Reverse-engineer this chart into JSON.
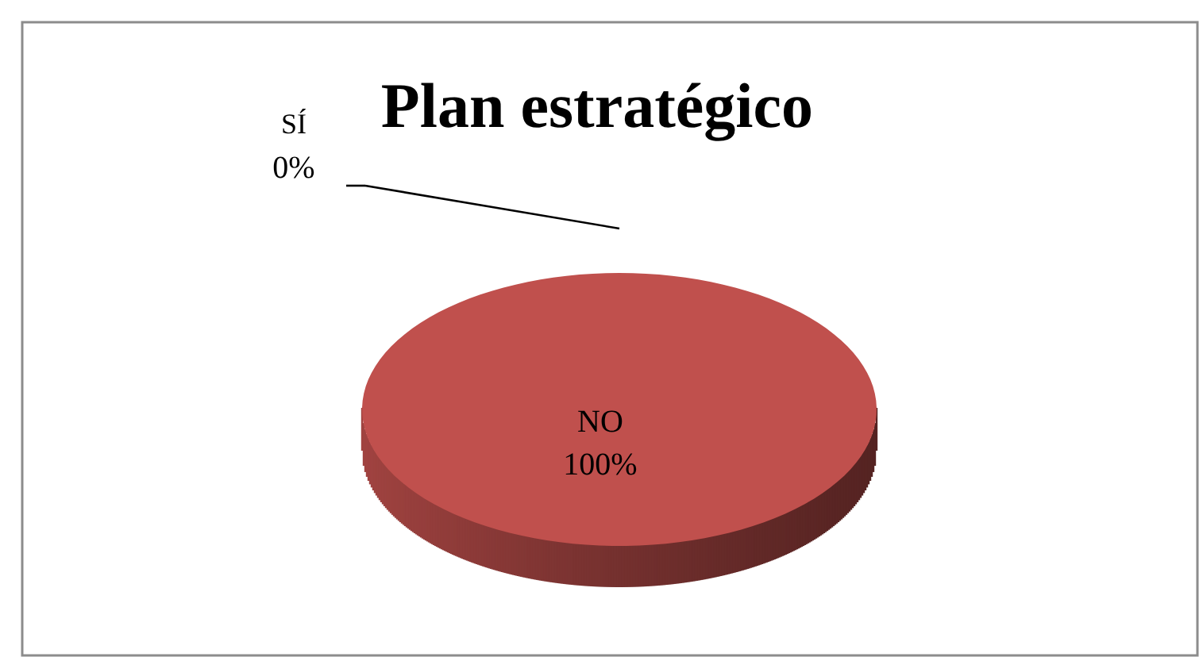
{
  "chart_data": {
    "type": "pie",
    "title": "Plan estratégico",
    "categories": [
      "SÍ",
      "NO"
    ],
    "values": [
      0,
      100
    ],
    "value_labels": [
      "0%",
      "100%"
    ],
    "colors": [
      "#4f81bd",
      "#c0504d"
    ]
  }
}
